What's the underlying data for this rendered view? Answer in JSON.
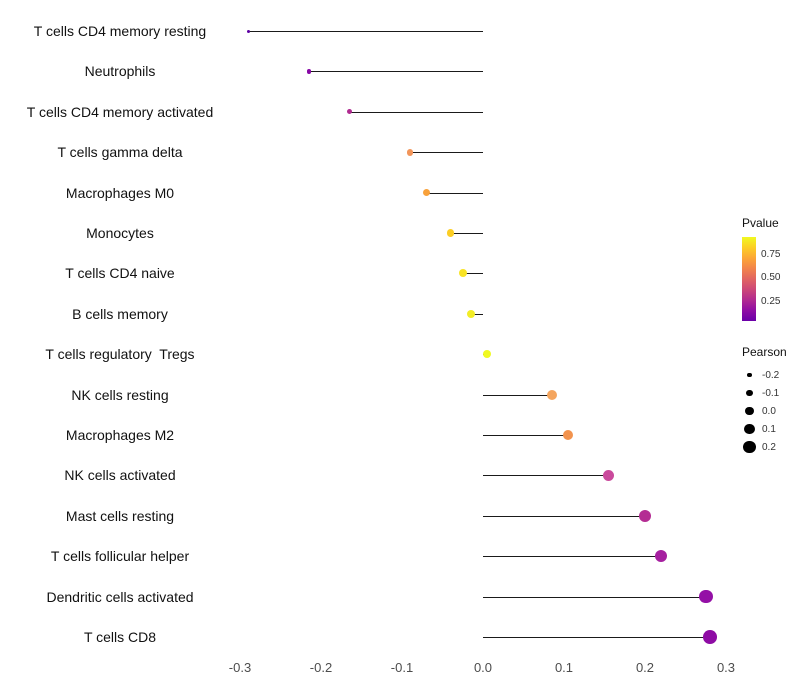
{
  "chart_data": {
    "type": "lollipop",
    "orientation": "horizontal",
    "title": "",
    "xlabel": "",
    "ylabel": "",
    "grid": false,
    "background": "#ffffff",
    "stem_color": "#1a1a1a",
    "legend_position": "right",
    "xlim": [
      -0.32,
      0.35
    ],
    "x_ticks": [
      -0.3,
      -0.2,
      -0.1,
      0.0,
      0.1,
      0.2,
      0.3
    ],
    "x_tick_labels": [
      "-0.3",
      "-0.2",
      "-0.1",
      "0.0",
      "0.1",
      "0.2",
      "0.3"
    ],
    "points": [
      {
        "label": "T cells CD4 memory resting",
        "pearson": -0.29,
        "color": "#5c01a3"
      },
      {
        "label": "Neutrophils",
        "pearson": -0.215,
        "color": "#8707a6"
      },
      {
        "label": "T cells CD4 memory activated",
        "pearson": -0.165,
        "color": "#b02a90"
      },
      {
        "label": "T cells gamma delta",
        "pearson": -0.09,
        "color": "#f2955a"
      },
      {
        "label": "Macrophages M0",
        "pearson": -0.07,
        "color": "#f8a13b"
      },
      {
        "label": "Monocytes",
        "pearson": -0.04,
        "color": "#fcce25"
      },
      {
        "label": "T cells CD4 naive",
        "pearson": -0.025,
        "color": "#f8e325"
      },
      {
        "label": "B cells memory",
        "pearson": -0.015,
        "color": "#f2ed27"
      },
      {
        "label": "T cells regulatory  Tregs",
        "pearson": 0.005,
        "color": "#f0f921"
      },
      {
        "label": "NK cells resting",
        "pearson": 0.085,
        "color": "#f4a55e"
      },
      {
        "label": "Macrophages M2",
        "pearson": 0.105,
        "color": "#f2934e"
      },
      {
        "label": "NK cells activated",
        "pearson": 0.155,
        "color": "#ca4a9c"
      },
      {
        "label": "Mast cells resting",
        "pearson": 0.2,
        "color": "#b42c93"
      },
      {
        "label": "T cells follicular helper",
        "pearson": 0.22,
        "color": "#a620a0"
      },
      {
        "label": "Dendritic cells activated",
        "pearson": 0.275,
        "color": "#9410a6"
      },
      {
        "label": "T cells CD8",
        "pearson": 0.28,
        "color": "#8e0ca4"
      }
    ],
    "legend": {
      "color": {
        "title": "Pvalue",
        "ticks": [
          "0.75",
          "0.50",
          "0.25"
        ],
        "gradient": [
          "#f0f921",
          "#fcce25",
          "#fca636",
          "#f2844b",
          "#e16462",
          "#cc4778",
          "#b12a90",
          "#8f0da4",
          "#6a00a8"
        ]
      },
      "size": {
        "title": "Pearson",
        "ticks": [
          "-0.2",
          "-0.1",
          "0.0",
          "0.1",
          "0.2"
        ],
        "values": [
          -0.2,
          -0.1,
          0.0,
          0.1,
          0.2
        ]
      }
    }
  }
}
